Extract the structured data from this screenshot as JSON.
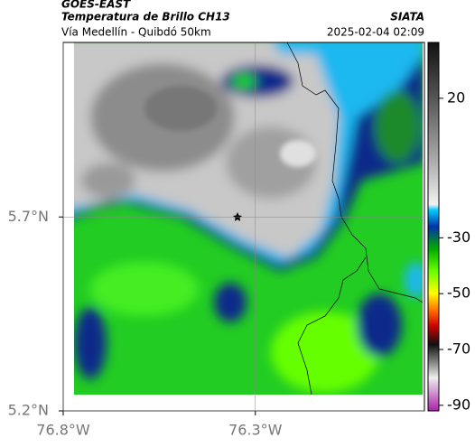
{
  "map": {
    "title": "GOES-EAST",
    "product": "Temperatura de Brillo CH13",
    "source": "SIATA",
    "route": "Vía Medellín - Quibdó 50km",
    "timestamp": "2025-02-04 02:09",
    "xlim": [
      -76.8,
      -75.86
    ],
    "ylim": [
      5.2,
      6.15
    ],
    "xticks": [
      {
        "value": -76.8,
        "label": "76.8°W"
      },
      {
        "value": -76.3,
        "label": "76.3°W"
      }
    ],
    "yticks": [
      {
        "value": 5.7,
        "label": "5.7°N"
      },
      {
        "value": 5.2,
        "label": "5.2°N"
      }
    ],
    "colorbar": {
      "lim": [
        -92,
        40
      ],
      "ticks": [
        20,
        -30,
        -50,
        -70,
        -90
      ]
    }
  }
}
